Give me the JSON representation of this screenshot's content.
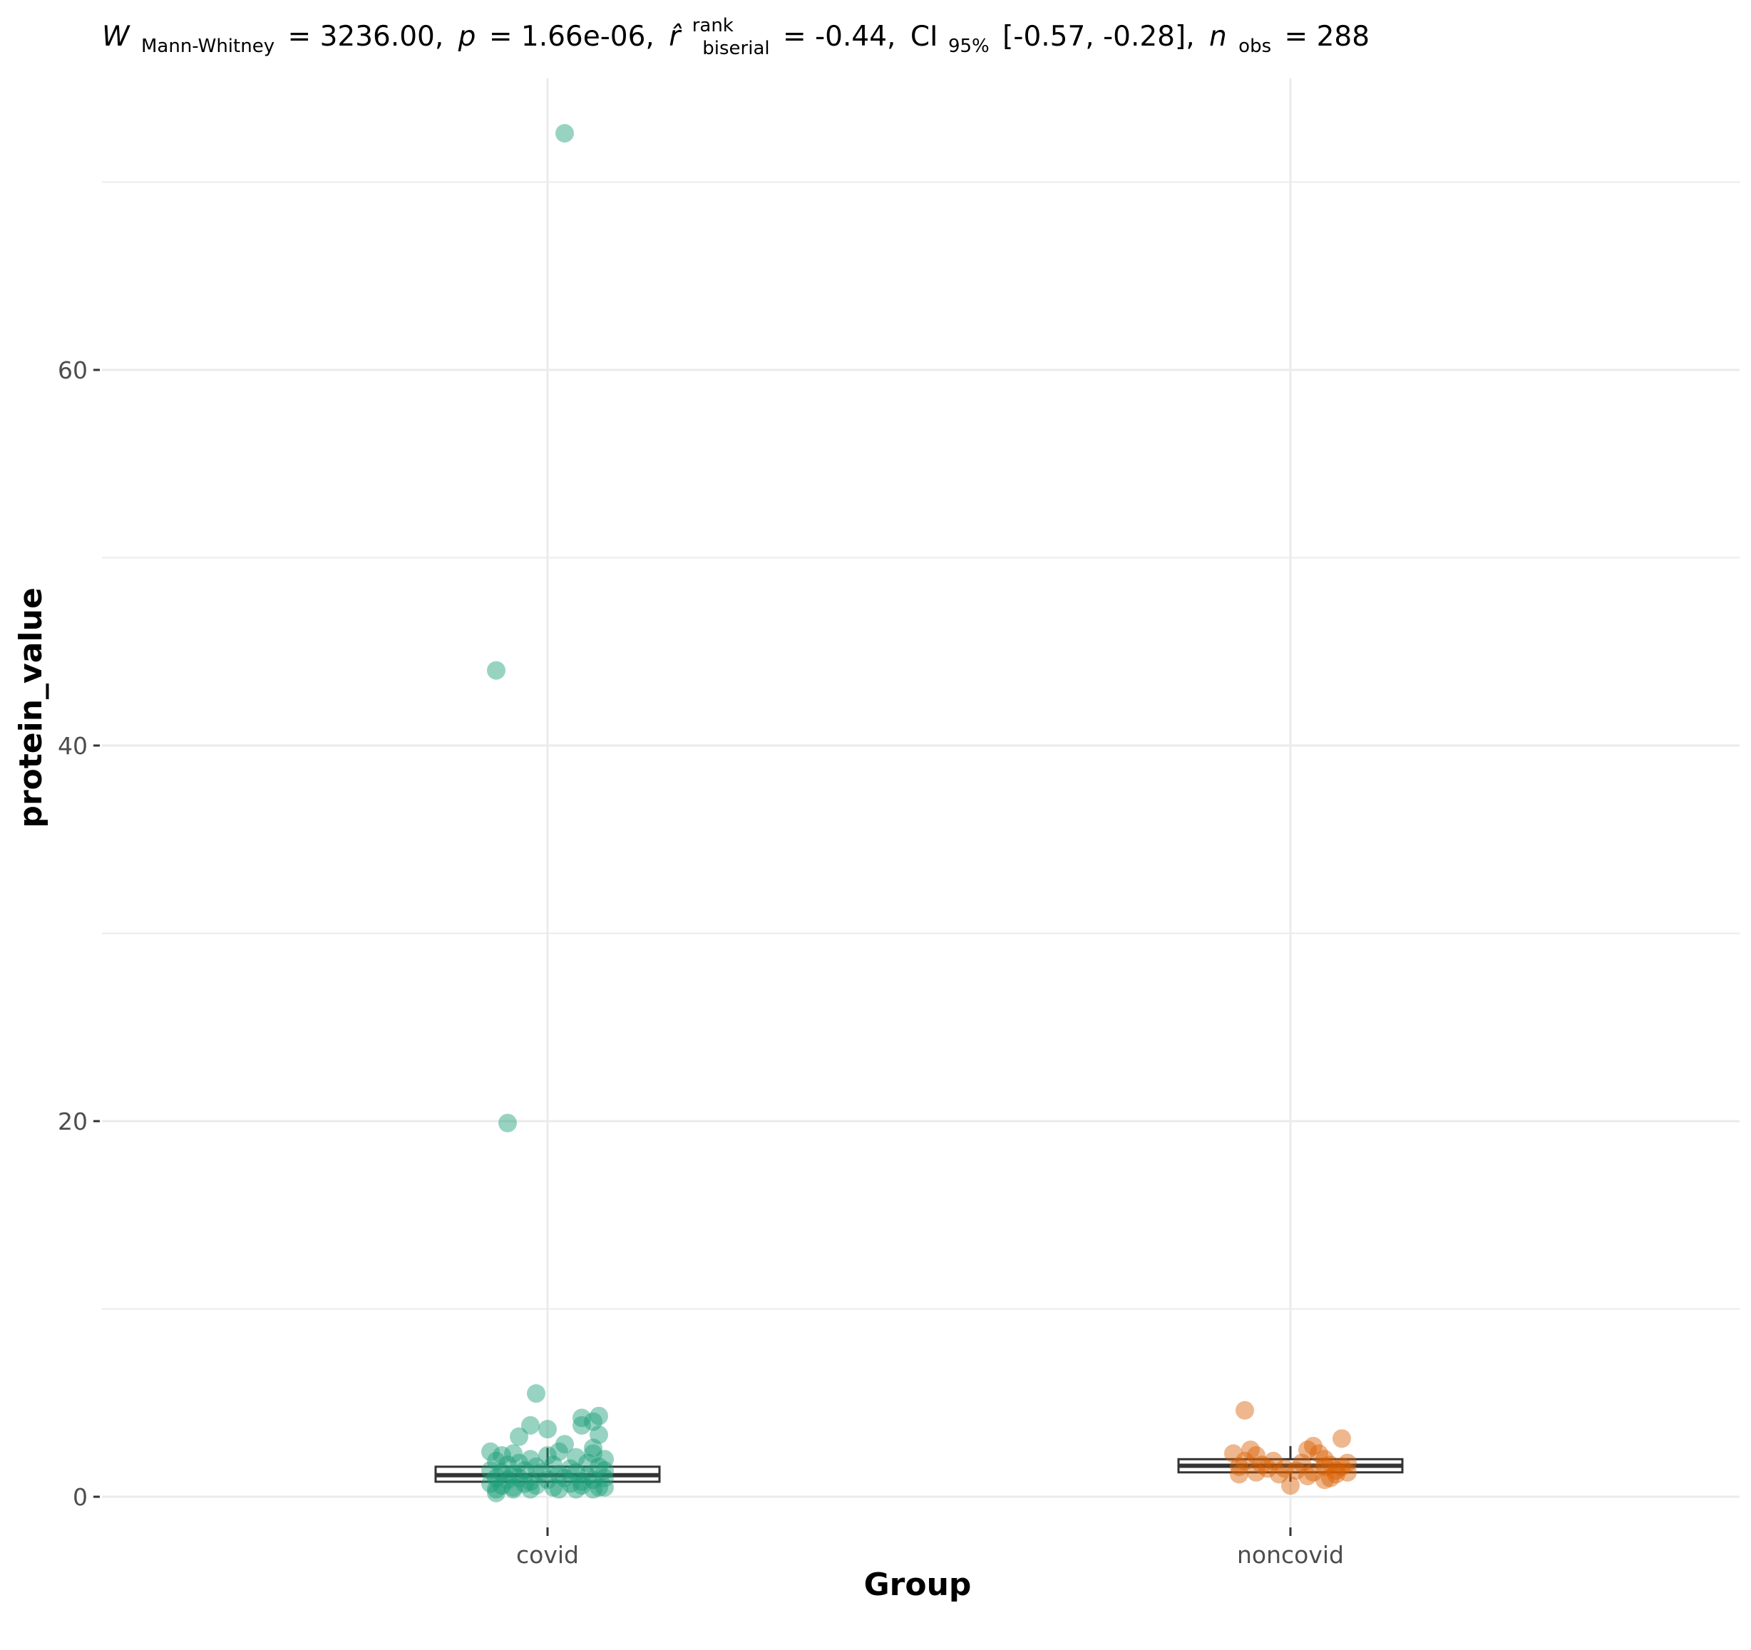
{
  "chart_data": {
    "type": "box-jitter",
    "subtitle": {
      "W_label": "W",
      "W_sub": "Mann-Whitney",
      "W_value": "= 3236.00,",
      "p_label": "p",
      "p_value": "= 1.66e-06,",
      "r_label": "r̂",
      "r_sup": "rank",
      "r_sub": "biserial",
      "r_value": "= -0.44,",
      "ci_label": "CI",
      "ci_sub": "95%",
      "ci_value": "[-0.57, -0.28],",
      "n_label": "n",
      "n_sub": "obs",
      "n_value": "= 288"
    },
    "xlabel": "Group",
    "ylabel": "protein_value",
    "categories": [
      "covid",
      "noncovid"
    ],
    "ylim": [
      -3,
      72
    ],
    "yticks": [
      0,
      20,
      40,
      60
    ],
    "y_minor_gridlines": [
      10,
      30,
      50,
      70
    ],
    "grid": true,
    "colors": {
      "covid": "#1b9e77",
      "noncovid": "#d95f02"
    },
    "boxes": [
      {
        "group": "covid",
        "q1": 0.8,
        "median": 1.15,
        "q3": 1.6,
        "whisker_low": 0.5,
        "whisker_high": 2.6
      },
      {
        "group": "noncovid",
        "q1": 1.3,
        "median": 1.65,
        "q3": 2.0,
        "whisker_low": 0.8,
        "whisker_high": 2.7
      }
    ],
    "series": [
      {
        "name": "covid",
        "points": [
          [
            -0.09,
            44.0
          ],
          [
            -0.07,
            19.9
          ],
          [
            0.03,
            72.6
          ],
          [
            -0.02,
            5.5
          ],
          [
            0.0,
            3.6
          ],
          [
            -0.03,
            3.8
          ],
          [
            -0.05,
            3.2
          ],
          [
            0.06,
            4.2
          ],
          [
            0.09,
            4.3
          ],
          [
            0.09,
            3.3
          ],
          [
            0.08,
            2.6
          ],
          [
            0.03,
            2.8
          ],
          [
            0.06,
            3.8
          ],
          [
            0.08,
            4.0
          ],
          [
            -0.1,
            2.4
          ],
          [
            -0.08,
            2.2
          ],
          [
            -0.06,
            2.3
          ],
          [
            -0.03,
            2.0
          ],
          [
            0.0,
            2.2
          ],
          [
            0.02,
            2.4
          ],
          [
            0.05,
            2.1
          ],
          [
            0.08,
            2.3
          ],
          [
            0.1,
            2.0
          ],
          [
            -0.09,
            1.9
          ],
          [
            -0.07,
            1.7
          ],
          [
            -0.05,
            1.8
          ],
          [
            -0.02,
            1.6
          ],
          [
            0.01,
            1.7
          ],
          [
            0.04,
            1.5
          ],
          [
            0.07,
            1.8
          ],
          [
            0.09,
            1.6
          ],
          [
            -0.1,
            1.4
          ],
          [
            -0.08,
            1.3
          ],
          [
            -0.06,
            1.2
          ],
          [
            -0.04,
            1.4
          ],
          [
            -0.01,
            1.3
          ],
          [
            0.02,
            1.2
          ],
          [
            0.05,
            1.3
          ],
          [
            0.07,
            1.1
          ],
          [
            0.1,
            1.4
          ],
          [
            -0.09,
            1.0
          ],
          [
            -0.07,
            0.9
          ],
          [
            -0.05,
            1.0
          ],
          [
            -0.03,
            0.8
          ],
          [
            0.0,
            0.9
          ],
          [
            0.03,
            1.0
          ],
          [
            0.06,
            0.8
          ],
          [
            0.08,
            0.9
          ],
          [
            0.1,
            1.0
          ],
          [
            -0.1,
            0.7
          ],
          [
            -0.08,
            0.6
          ],
          [
            -0.06,
            0.5
          ],
          [
            -0.04,
            0.7
          ],
          [
            -0.02,
            0.6
          ],
          [
            0.01,
            0.5
          ],
          [
            0.04,
            0.7
          ],
          [
            0.06,
            0.6
          ],
          [
            0.09,
            0.5
          ],
          [
            -0.09,
            0.4
          ],
          [
            -0.06,
            0.4
          ],
          [
            -0.03,
            0.4
          ],
          [
            0.02,
            0.4
          ],
          [
            0.05,
            0.4
          ],
          [
            0.08,
            0.4
          ],
          [
            -0.09,
            0.2
          ],
          [
            0.1,
            0.5
          ]
        ]
      },
      {
        "name": "noncovid",
        "points": [
          [
            -0.08,
            4.6
          ],
          [
            -0.07,
            2.5
          ],
          [
            -0.1,
            2.3
          ],
          [
            -0.06,
            2.2
          ],
          [
            -0.08,
            1.9
          ],
          [
            -0.09,
            1.6
          ],
          [
            -0.05,
            1.7
          ],
          [
            -0.03,
            1.9
          ],
          [
            -0.01,
            1.5
          ],
          [
            0.0,
            0.6
          ],
          [
            0.02,
            1.8
          ],
          [
            0.03,
            2.5
          ],
          [
            0.04,
            2.7
          ],
          [
            0.05,
            2.3
          ],
          [
            0.06,
            2.0
          ],
          [
            0.07,
            1.7
          ],
          [
            0.08,
            1.4
          ],
          [
            0.09,
            1.6
          ],
          [
            0.1,
            1.8
          ],
          [
            0.09,
            3.1
          ],
          [
            0.07,
            1.0
          ],
          [
            0.06,
            0.9
          ],
          [
            0.08,
            1.2
          ],
          [
            -0.06,
            1.3
          ],
          [
            -0.04,
            1.5
          ],
          [
            -0.02,
            1.2
          ],
          [
            0.01,
            1.4
          ],
          [
            0.04,
            1.3
          ],
          [
            0.06,
            1.6
          ],
          [
            0.1,
            1.3
          ],
          [
            -0.09,
            1.2
          ],
          [
            0.03,
            1.1
          ]
        ]
      }
    ]
  }
}
